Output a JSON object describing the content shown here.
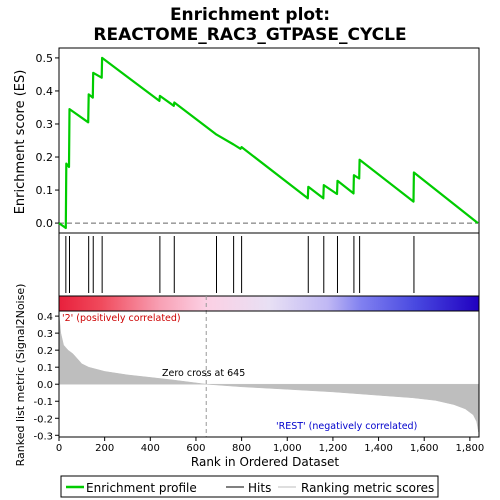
{
  "chart_data": {
    "type": "line",
    "title_line1": "Enrichment plot:",
    "title_line2": "REACTOME_RAC3_GTPASE_CYCLE",
    "es_panel": {
      "ylabel": "Enrichment score (ES)",
      "ylim": [
        -0.03,
        0.53
      ],
      "yticks": [
        "0.0",
        "0.1",
        "0.2",
        "0.3",
        "0.4",
        "0.5"
      ],
      "ytick_values": [
        0.0,
        0.1,
        0.2,
        0.3,
        0.4,
        0.5
      ],
      "curve_color": "#00cc00",
      "curve": [
        [
          0,
          0.0
        ],
        [
          30,
          -0.015
        ],
        [
          32,
          0.18
        ],
        [
          44,
          0.17
        ],
        [
          46,
          0.345
        ],
        [
          128,
          0.305
        ],
        [
          130,
          0.39
        ],
        [
          148,
          0.38
        ],
        [
          150,
          0.455
        ],
        [
          187,
          0.44
        ],
        [
          189,
          0.5
        ],
        [
          440,
          0.37
        ],
        [
          442,
          0.385
        ],
        [
          503,
          0.355
        ],
        [
          505,
          0.365
        ],
        [
          690,
          0.268
        ],
        [
          765,
          0.238
        ],
        [
          795,
          0.225
        ],
        [
          800,
          0.23
        ],
        [
          1090,
          0.075
        ],
        [
          1092,
          0.11
        ],
        [
          1158,
          0.075
        ],
        [
          1160,
          0.115
        ],
        [
          1218,
          0.088
        ],
        [
          1220,
          0.128
        ],
        [
          1290,
          0.09
        ],
        [
          1292,
          0.145
        ],
        [
          1315,
          0.135
        ],
        [
          1317,
          0.192
        ],
        [
          1553,
          0.065
        ],
        [
          1555,
          0.153
        ],
        [
          1835,
          0.0
        ]
      ]
    },
    "hits": {
      "positions": [
        30,
        46,
        130,
        150,
        189,
        442,
        505,
        690,
        765,
        800,
        1092,
        1160,
        1220,
        1292,
        1317,
        1555
      ]
    },
    "gradient": {
      "stops": [
        {
          "pos": 0.0,
          "color": "#e8203c"
        },
        {
          "pos": 0.1,
          "color": "#f04a5c"
        },
        {
          "pos": 0.24,
          "color": "#f8a0b4"
        },
        {
          "pos": 0.35,
          "color": "#fcd0e4"
        },
        {
          "pos": 0.5,
          "color": "#e8e0f4"
        },
        {
          "pos": 0.64,
          "color": "#c0b8f4"
        },
        {
          "pos": 0.72,
          "color": "#8080f0"
        },
        {
          "pos": 0.85,
          "color": "#4848e0"
        },
        {
          "pos": 1.0,
          "color": "#2000c0"
        }
      ]
    },
    "metric_panel": {
      "ylabel": "Ranked list metric (Signal2Noise)",
      "ylim": [
        -0.31,
        0.43
      ],
      "yticks": [
        "-0.3",
        "-0.2",
        "-0.1",
        "0.0",
        "0.1",
        "0.2",
        "0.3",
        "0.4"
      ],
      "ytick_values": [
        -0.3,
        -0.2,
        -0.1,
        0.0,
        0.1,
        0.2,
        0.3,
        0.4
      ],
      "fill_color": "#bebebe",
      "curve": [
        [
          0,
          0.41
        ],
        [
          8,
          0.3
        ],
        [
          20,
          0.23
        ],
        [
          40,
          0.2
        ],
        [
          60,
          0.18
        ],
        [
          80,
          0.15
        ],
        [
          100,
          0.12
        ],
        [
          130,
          0.1
        ],
        [
          200,
          0.075
        ],
        [
          300,
          0.055
        ],
        [
          400,
          0.04
        ],
        [
          500,
          0.025
        ],
        [
          645,
          0.0
        ],
        [
          800,
          -0.015
        ],
        [
          1000,
          -0.03
        ],
        [
          1200,
          -0.045
        ],
        [
          1400,
          -0.065
        ],
        [
          1550,
          -0.08
        ],
        [
          1650,
          -0.095
        ],
        [
          1730,
          -0.12
        ],
        [
          1780,
          -0.145
        ],
        [
          1815,
          -0.18
        ],
        [
          1830,
          -0.22
        ],
        [
          1838,
          -0.28
        ]
      ],
      "pos_label": "'2' (positively correlated)",
      "neg_label": "'REST' (negatively correlated)",
      "zero_cross_label": "Zero cross at 645",
      "zero_cross": 645,
      "pos_color": "#cc0000",
      "neg_color": "#0000cc"
    },
    "xaxis": {
      "xlabel": "Rank in Ordered Dataset",
      "xlim": [
        0,
        1840
      ],
      "xticks": [
        "0",
        "200",
        "400",
        "600",
        "800",
        "1,000",
        "1,200",
        "1,400",
        "1,600",
        "1,800"
      ],
      "xtick_values": [
        0,
        200,
        400,
        600,
        800,
        1000,
        1200,
        1400,
        1600,
        1800
      ]
    },
    "legend": {
      "items": [
        {
          "label": "Enrichment profile",
          "color": "#00cc00"
        },
        {
          "label": "Hits",
          "color": "#000000"
        },
        {
          "label": "Ranking metric scores",
          "color": "#bebebe"
        }
      ]
    }
  }
}
